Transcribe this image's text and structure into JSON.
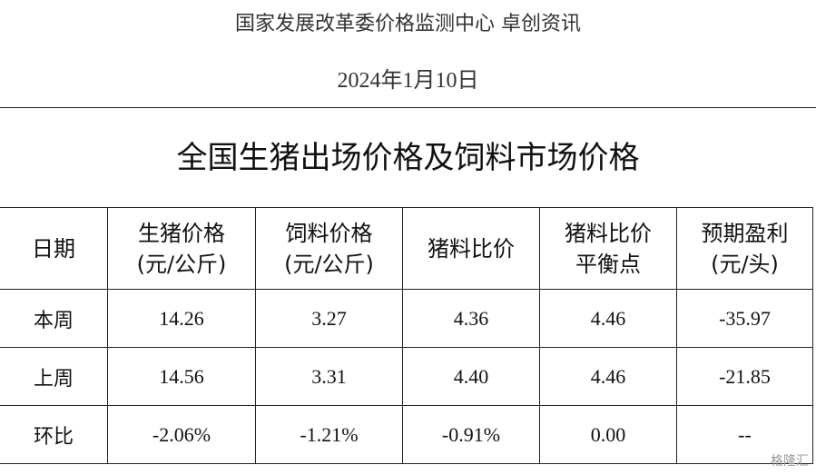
{
  "header": {
    "source": "国家发展改革委价格监测中心  卓创资讯",
    "date": "2024年1月10日"
  },
  "table": {
    "title": "全国生猪出场价格及饲料市场价格",
    "columns": [
      [
        "日期"
      ],
      [
        "生猪价格",
        "(元/公斤)"
      ],
      [
        "饲料价格",
        "(元/公斤)"
      ],
      [
        "猪料比价"
      ],
      [
        "猪料比价",
        "平衡点"
      ],
      [
        "预期盈利",
        "(元/头)"
      ]
    ],
    "rows": [
      [
        "本周",
        "14.26",
        "3.27",
        "4.36",
        "4.46",
        "-35.97"
      ],
      [
        "上周",
        "14.56",
        "3.31",
        "4.40",
        "4.46",
        "-21.85"
      ],
      [
        "环比",
        "-2.06%",
        "-1.21%",
        "-0.91%",
        "0.00",
        "--"
      ]
    ]
  },
  "watermark": "格隆汇"
}
